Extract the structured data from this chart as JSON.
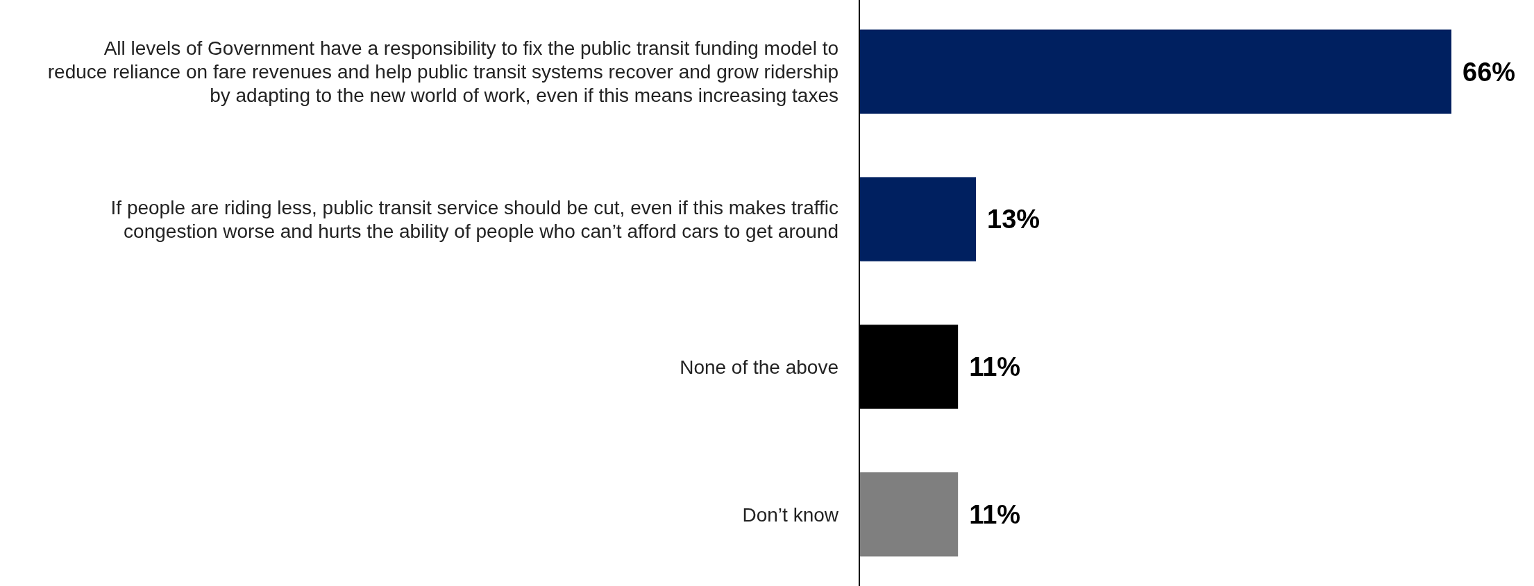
{
  "chart_data": {
    "type": "bar",
    "orientation": "horizontal",
    "categories": [
      "All levels of Government have a responsibility to fix the public transit funding model to reduce reliance on fare revenues and help public transit systems recover and grow ridership by adapting to the new world of work, even if this means increasing taxes",
      "If people are riding less, public transit service should be cut, even if this makes traffic congestion worse and hurts the ability of people who can’t afford cars to get around",
      "None of the above",
      "Don’t know"
    ],
    "values": [
      66,
      13,
      11,
      11
    ],
    "colors": [
      "#002060",
      "#002060",
      "#000000",
      "#7f7f7f"
    ],
    "value_labels": [
      "66%",
      "13%",
      "11%",
      "11%"
    ]
  }
}
